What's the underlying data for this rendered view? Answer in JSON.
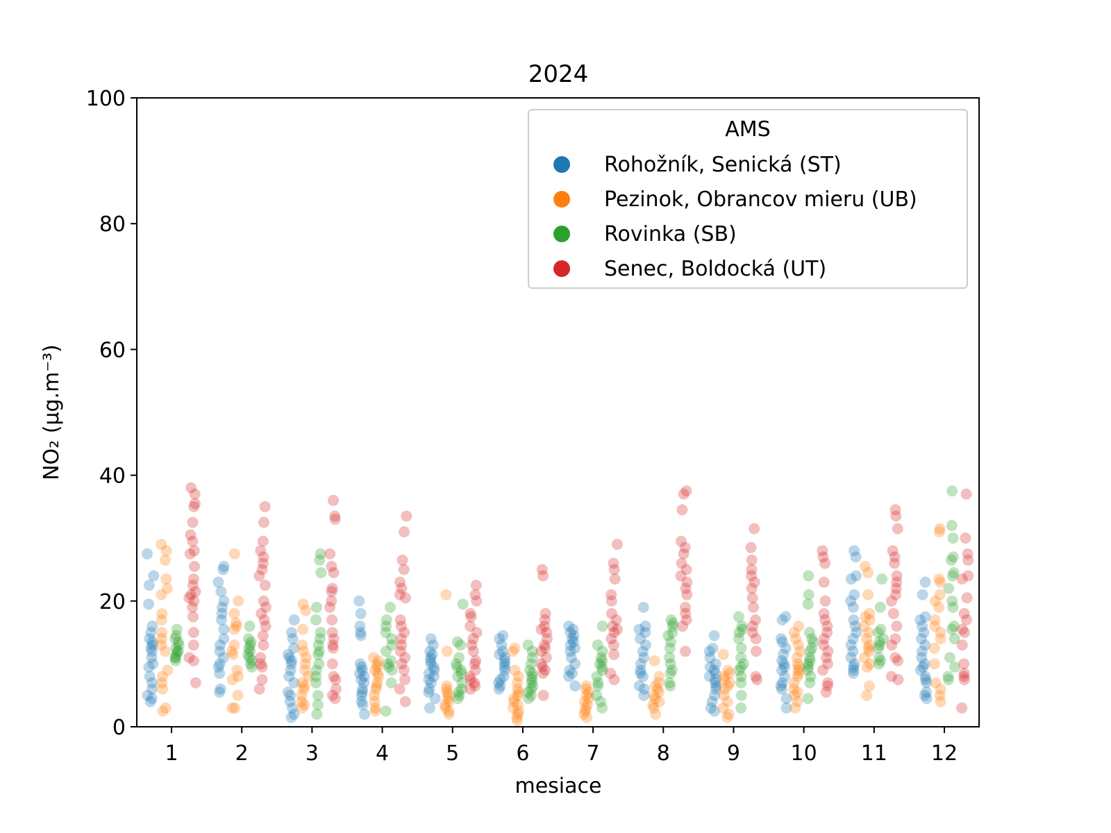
{
  "chart_data": {
    "type": "scatter",
    "subtype": "strip",
    "title": "2024",
    "xlabel": "mesiace",
    "ylabel": "NO₂   (μg.m⁻³)",
    "ylim": [
      0,
      100
    ],
    "yticks": [
      0,
      20,
      40,
      60,
      80,
      100
    ],
    "categories": [
      "1",
      "2",
      "3",
      "4",
      "5",
      "6",
      "7",
      "8",
      "9",
      "10",
      "11",
      "12"
    ],
    "grid": false,
    "legend": {
      "title": "AMS",
      "placement": "top-right"
    },
    "series": [
      {
        "name": "Rohožník, Senická (ST)",
        "color": "#1f77b4",
        "values": [
          [
            27.5,
            24,
            22.5,
            19.5,
            16,
            15,
            14,
            13.5,
            13,
            12.5,
            12,
            11,
            10,
            9.5,
            8,
            7,
            6,
            5,
            4.5,
            4
          ],
          [
            25.5,
            25,
            23,
            21.5,
            20,
            19,
            18,
            17,
            15.5,
            14,
            13,
            12,
            11,
            10,
            9.5,
            8.5,
            6,
            5.5
          ],
          [
            17,
            15,
            14,
            12.5,
            11.5,
            11,
            10.5,
            10,
            9,
            8,
            7,
            5.5,
            5,
            4,
            3,
            2,
            1.5
          ],
          [
            20,
            18,
            16,
            15,
            14.5,
            10,
            9.5,
            9,
            8.5,
            8,
            7.5,
            7,
            6,
            5.5,
            5,
            4,
            3.5,
            2
          ],
          [
            14,
            13,
            12,
            11.5,
            11,
            10.5,
            10,
            9.5,
            9,
            8.5,
            8,
            7.5,
            7,
            6,
            5.5,
            4.5,
            3
          ],
          [
            14.5,
            14,
            13,
            12,
            11.5,
            11,
            10.5,
            10,
            9.5,
            9,
            8,
            7.5,
            7,
            6.5,
            6
          ],
          [
            16,
            15.5,
            15,
            14.5,
            14,
            13.5,
            13,
            12.5,
            12,
            11,
            10,
            9,
            8.5,
            8,
            6.5
          ],
          [
            19,
            16,
            15.5,
            15,
            14,
            13,
            12,
            11,
            10,
            9,
            8.5,
            8,
            6.5,
            6,
            5
          ],
          [
            14.5,
            12.5,
            12,
            11,
            10,
            9.5,
            9,
            8.5,
            8,
            7.5,
            7,
            6.5,
            6,
            5,
            4,
            3,
            2.5
          ],
          [
            17.5,
            17,
            14,
            13.5,
            12.5,
            11.5,
            10.5,
            10,
            9.5,
            9,
            8,
            7,
            6.5,
            6,
            4.5,
            3
          ],
          [
            28,
            27,
            24,
            23.5,
            21,
            20,
            19,
            17,
            16,
            15,
            14,
            13,
            12,
            11,
            10,
            9.5,
            9,
            8.5
          ],
          [
            23,
            21,
            17.5,
            17,
            16,
            15,
            14,
            13,
            12,
            11,
            10,
            9.5,
            9,
            8,
            7.5,
            7,
            5.5,
            5,
            4.5
          ]
        ]
      },
      {
        "name": "Pezinok, Obrancov mieru (UB)",
        "color": "#ff7f0e",
        "values": [
          [
            29,
            28,
            26.5,
            23.5,
            22,
            21,
            18,
            17,
            15,
            14,
            13,
            12,
            9,
            8,
            7,
            6,
            3,
            2.5
          ],
          [
            27.5,
            20,
            18,
            16.5,
            16,
            15.5,
            13,
            12,
            11.5,
            9,
            8,
            7.5,
            5,
            3,
            3
          ],
          [
            19.5,
            18.5,
            15.5,
            13,
            12,
            11,
            10,
            9,
            8,
            7,
            6.5,
            6,
            5,
            4,
            3.5,
            3
          ],
          [
            11,
            10.5,
            10,
            9.5,
            9,
            8.5,
            8,
            7,
            6.5,
            6,
            5,
            4,
            3,
            2.5
          ],
          [
            21,
            12,
            6.5,
            6,
            5.5,
            5,
            4.5,
            4,
            3.5,
            3,
            2.5,
            2
          ],
          [
            12.5,
            12,
            9,
            8,
            7,
            6,
            5.5,
            5,
            4.5,
            4,
            3.5,
            3,
            2.5,
            2,
            1.5,
            1
          ],
          [
            6.5,
            6,
            5.5,
            5,
            4.5,
            4,
            3.5,
            3,
            2.5,
            2,
            1.5
          ],
          [
            10.5,
            8,
            7,
            6.5,
            6,
            5.5,
            5,
            4.5,
            4,
            3.5,
            3,
            2
          ],
          [
            11.5,
            9,
            8.5,
            8,
            7.5,
            7,
            6.5,
            6,
            5,
            4,
            3,
            2,
            1.5
          ],
          [
            16,
            15,
            14,
            13,
            12,
            11,
            10,
            9.5,
            9,
            8.5,
            8,
            7,
            6,
            5.5,
            5,
            4,
            3
          ],
          [
            25.5,
            24.5,
            21,
            18,
            17.5,
            17,
            16,
            15,
            14,
            13,
            12.5,
            12,
            11,
            10,
            9.5,
            6.5,
            5
          ],
          [
            31.5,
            31,
            23.5,
            23,
            21,
            20,
            19,
            17,
            16,
            15,
            14,
            12.5,
            10,
            7,
            6,
            5,
            4
          ]
        ]
      },
      {
        "name": "Rovinka (SB)",
        "color": "#2ca02c",
        "values": [
          [
            15.5,
            14.5,
            14,
            13.5,
            13,
            12.5,
            12,
            12,
            11.5,
            11,
            11,
            10.5
          ],
          [
            16,
            14,
            13.5,
            13,
            12.5,
            12,
            11.5,
            11,
            10.5,
            10,
            9.5
          ],
          [
            27.5,
            26.5,
            24.5,
            19,
            17,
            15,
            14,
            13,
            12,
            11.5,
            10,
            9,
            8,
            7,
            5,
            3.5,
            2
          ],
          [
            19,
            17,
            16,
            15,
            14,
            13,
            12,
            10.5,
            10,
            9.5,
            9,
            7,
            2.5
          ],
          [
            19.5,
            13.5,
            13,
            11,
            10,
            9.5,
            9,
            8.5,
            8,
            7,
            6,
            5.5,
            5,
            4.5
          ],
          [
            13,
            12,
            11,
            10,
            9,
            8.5,
            8,
            7.5,
            7,
            6.5,
            6,
            5.5,
            5,
            4.5
          ],
          [
            16,
            13,
            12,
            11,
            10.5,
            10,
            9.5,
            9,
            8,
            7,
            6.5,
            5,
            4,
            3
          ],
          [
            17,
            16.5,
            16,
            15,
            14.5,
            13.5,
            12.5,
            11,
            10,
            9,
            8.5,
            7,
            6.5
          ],
          [
            17.5,
            16,
            15.5,
            15,
            14,
            12.5,
            11,
            10,
            9.5,
            9,
            8,
            7,
            5,
            3
          ],
          [
            24,
            21,
            19.5,
            15,
            14,
            13.5,
            12.5,
            12,
            11,
            10.5,
            10,
            9.5,
            9,
            8,
            7,
            4.5
          ],
          [
            23.5,
            19,
            15.5,
            15,
            14,
            13.5,
            13,
            12.5,
            11,
            10.5,
            10
          ],
          [
            37.5,
            32,
            30,
            27,
            26.5,
            24.5,
            24,
            22,
            20,
            19,
            16,
            15.5,
            14,
            11,
            9.5,
            8,
            7.5
          ]
        ]
      },
      {
        "name": "Senec, Boldocká (UT)",
        "color": "#d62728",
        "values": [
          [
            38,
            37,
            35.5,
            35,
            32.5,
            30.5,
            29.5,
            28,
            27.5,
            25.5,
            23.5,
            22.5,
            21.5,
            21,
            20.5,
            20,
            19,
            17.5,
            15,
            13,
            11,
            10.5,
            7
          ],
          [
            35,
            32.5,
            29.5,
            28,
            27,
            26,
            25,
            24,
            22.5,
            20,
            19,
            18,
            17,
            16,
            14.5,
            13,
            11,
            10,
            9.5,
            7.5,
            6
          ],
          [
            36,
            33.5,
            33,
            27.5,
            25.5,
            24.5,
            22,
            21.5,
            20,
            19,
            17,
            15,
            14,
            13,
            12.5,
            10,
            8,
            7.5,
            6,
            5,
            4.5
          ],
          [
            33.5,
            31,
            26.5,
            25,
            23,
            22,
            21,
            20.5,
            17,
            16,
            15,
            14,
            13,
            12,
            11,
            10,
            9,
            7.5,
            6,
            4
          ],
          [
            22.5,
            21,
            20,
            18,
            17.5,
            16,
            15,
            14,
            13,
            12,
            10.5,
            10,
            9,
            8,
            7.5,
            7,
            6.5,
            6
          ],
          [
            25,
            24,
            18,
            17,
            16,
            15.5,
            15,
            14,
            13,
            12.5,
            12,
            11,
            10,
            9.5,
            9,
            8.5,
            5
          ],
          [
            29,
            26,
            25,
            23.5,
            21,
            20,
            18,
            17,
            16,
            15.5,
            15,
            14,
            13,
            11.5,
            8.5,
            7.5
          ],
          [
            37.5,
            37,
            34.5,
            29.5,
            28.5,
            27.5,
            26,
            25,
            24,
            23,
            22,
            21,
            19,
            18,
            17,
            16,
            12
          ],
          [
            31.5,
            28.5,
            26.5,
            25,
            24,
            23,
            22,
            20.5,
            19,
            17,
            16,
            15,
            14,
            12,
            8,
            7.5
          ],
          [
            28,
            27,
            26,
            23,
            20,
            18,
            17,
            16,
            15,
            14,
            13,
            12,
            11,
            10,
            9,
            7,
            6.5,
            5.5
          ],
          [
            34.5,
            33.5,
            31.5,
            28,
            27,
            26,
            24,
            23,
            22,
            21,
            20,
            18,
            16,
            14,
            13,
            11,
            10.5,
            8,
            7.5
          ],
          [
            37,
            30,
            27.5,
            26.5,
            24,
            23.5,
            20.5,
            18,
            17,
            15.5,
            15,
            13,
            10,
            8.5,
            8,
            7.5,
            3
          ]
        ]
      }
    ]
  }
}
